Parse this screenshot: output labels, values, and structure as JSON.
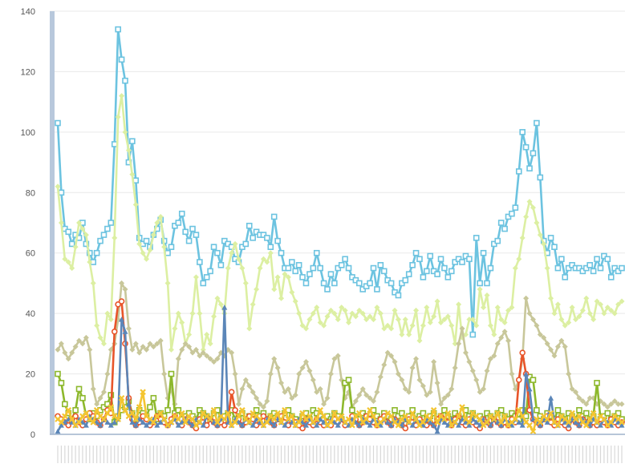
{
  "chart_data": {
    "type": "line",
    "title": "",
    "xlabel": "",
    "ylabel": "",
    "ylim": [
      0,
      140
    ],
    "yticks": [
      0,
      20,
      40,
      60,
      80,
      100,
      120,
      140
    ],
    "x_tick_labels_legible": false,
    "grid": true,
    "legend": "none",
    "marker_note": "each series uses its own marker style (square, diamond, circle, triangle, x)",
    "x": [
      1,
      2,
      3,
      4,
      5,
      6,
      7,
      8,
      9,
      10,
      11,
      12,
      13,
      14,
      15,
      16,
      17,
      18,
      19,
      20,
      21,
      22,
      23,
      24,
      25,
      26,
      27,
      28,
      29,
      30,
      31,
      32,
      33,
      34,
      35,
      36,
      37,
      38,
      39,
      40,
      41,
      42,
      43,
      44,
      45,
      46,
      47,
      48,
      49,
      50,
      51,
      52,
      53,
      54,
      55,
      56,
      57,
      58,
      59,
      60,
      61,
      62,
      63,
      64,
      65,
      66,
      67,
      68,
      69,
      70,
      71,
      72,
      73,
      74,
      75,
      76,
      77,
      78,
      79,
      80,
      81,
      82,
      83,
      84,
      85,
      86,
      87,
      88,
      89,
      90,
      91,
      92,
      93,
      94,
      95,
      96,
      97,
      98,
      99,
      100,
      101,
      102,
      103,
      104,
      105,
      106,
      107,
      108,
      109,
      110,
      111,
      112,
      113,
      114,
      115,
      116,
      117,
      118,
      119,
      120,
      121,
      122,
      123,
      124,
      125,
      126,
      127,
      128,
      129,
      130,
      131,
      132,
      133,
      134,
      135,
      136,
      137,
      138,
      139,
      140,
      141,
      142,
      143,
      144,
      145,
      146,
      147,
      148,
      149,
      150,
      151,
      152,
      153,
      154,
      155,
      156,
      157,
      158,
      159,
      160
    ],
    "series": [
      {
        "color": "#6cc3e0",
        "marker": "square",
        "values": [
          103,
          80,
          68,
          67,
          63,
          66,
          65,
          70,
          63,
          60,
          57,
          60,
          64,
          66,
          68,
          70,
          96,
          134,
          124,
          117,
          90,
          97,
          84,
          65,
          63,
          64,
          62,
          66,
          68,
          71,
          64,
          60,
          62,
          69,
          70,
          73,
          67,
          64,
          68,
          66,
          57,
          50,
          52,
          54,
          62,
          60,
          56,
          64,
          63,
          62,
          58,
          57,
          62,
          63,
          69,
          65,
          67,
          66,
          66,
          65,
          62,
          72,
          64,
          60,
          55,
          55,
          57,
          54,
          56,
          52,
          50,
          53,
          55,
          60,
          55,
          50,
          48,
          53,
          50,
          55,
          56,
          58,
          55,
          52,
          51,
          50,
          48,
          49,
          50,
          55,
          48,
          56,
          54,
          51,
          50,
          47,
          46,
          50,
          51,
          53,
          56,
          60,
          58,
          52,
          54,
          59,
          54,
          53,
          58,
          55,
          52,
          54,
          57,
          58,
          57,
          59,
          58,
          33,
          65,
          50,
          60,
          50,
          55,
          63,
          64,
          70,
          68,
          72,
          73,
          75,
          87,
          100,
          95,
          88,
          93,
          103,
          85,
          64,
          60,
          65,
          62,
          55,
          58,
          52,
          55,
          56,
          55,
          55,
          54,
          55,
          56,
          54,
          58,
          55,
          59,
          58,
          52,
          55,
          54,
          55
        ]
      },
      {
        "color": "#dcefa2",
        "marker": "diamond",
        "values": [
          82,
          70,
          58,
          57,
          55,
          62,
          70,
          68,
          66,
          57,
          50,
          36,
          32,
          30,
          40,
          38,
          65,
          105,
          112,
          100,
          94,
          86,
          76,
          63,
          60,
          58,
          61,
          66,
          70,
          72,
          62,
          50,
          28,
          35,
          40,
          37,
          30,
          33,
          40,
          52,
          40,
          28,
          33,
          30,
          39,
          45,
          43,
          40,
          55,
          60,
          63,
          58,
          55,
          50,
          35,
          43,
          48,
          55,
          58,
          57,
          60,
          48,
          52,
          45,
          53,
          52,
          47,
          44,
          40,
          36,
          35,
          38,
          40,
          42,
          37,
          36,
          39,
          41,
          40,
          38,
          42,
          41,
          37,
          40,
          39,
          41,
          40,
          38,
          39,
          38,
          42,
          40,
          35,
          36,
          35,
          41,
          38,
          33,
          38,
          33,
          36,
          41,
          31,
          36,
          42,
          37,
          39,
          44,
          37,
          38,
          39,
          36,
          30,
          43,
          32,
          33,
          38,
          38,
          36,
          48,
          42,
          46,
          36,
          33,
          42,
          38,
          37,
          41,
          42,
          55,
          58,
          65,
          72,
          77,
          75,
          70,
          66,
          63,
          55,
          45,
          40,
          43,
          38,
          36,
          37,
          42,
          38,
          39,
          41,
          45,
          40,
          38,
          44,
          43,
          40,
          42,
          41,
          40,
          43,
          44
        ]
      },
      {
        "color": "#c8c79a",
        "marker": "diamond",
        "values": [
          28,
          30,
          27,
          25,
          27,
          29,
          31,
          30,
          32,
          28,
          15,
          10,
          12,
          14,
          20,
          28,
          30,
          38,
          50,
          48,
          35,
          28,
          30,
          27,
          29,
          28,
          30,
          29,
          30,
          31,
          20,
          12,
          15,
          10,
          25,
          28,
          30,
          29,
          27,
          28,
          26,
          27,
          26,
          25,
          24,
          25,
          27,
          26,
          28,
          27,
          20,
          10,
          15,
          18,
          16,
          14,
          12,
          10,
          9,
          11,
          20,
          25,
          22,
          17,
          14,
          15,
          12,
          13,
          20,
          22,
          24,
          21,
          18,
          14,
          15,
          10,
          12,
          20,
          25,
          26,
          18,
          12,
          14,
          9,
          11,
          13,
          15,
          13,
          12,
          11,
          14,
          19,
          23,
          27,
          26,
          24,
          20,
          18,
          15,
          14,
          22,
          25,
          18,
          16,
          13,
          14,
          24,
          17,
          10,
          12,
          13,
          15,
          22,
          30,
          35,
          27,
          24,
          21,
          18,
          14,
          15,
          21,
          25,
          26,
          30,
          32,
          34,
          31,
          20,
          15,
          18,
          25,
          45,
          40,
          38,
          36,
          33,
          32,
          30,
          28,
          26,
          29,
          31,
          29,
          20,
          15,
          14,
          12,
          11,
          10,
          12,
          12,
          10,
          11,
          10,
          9,
          10,
          11,
          10,
          10
        ]
      },
      {
        "color": "#8db82c",
        "marker": "square",
        "values": [
          20,
          17,
          10,
          7,
          5,
          8,
          15,
          12,
          6,
          5,
          7,
          6,
          8,
          9,
          10,
          13,
          4,
          6,
          8,
          9,
          11,
          7,
          5,
          8,
          7,
          6,
          9,
          12,
          5,
          7,
          6,
          8,
          20,
          7,
          8,
          5,
          6,
          7,
          6,
          5,
          8,
          7,
          6,
          5,
          7,
          8,
          5,
          6,
          7,
          8,
          5,
          6,
          7,
          5,
          6,
          4,
          8,
          6,
          7,
          5,
          6,
          7,
          6,
          5,
          7,
          8,
          6,
          5,
          4,
          6,
          7,
          5,
          8,
          7,
          6,
          5,
          6,
          5,
          7,
          6,
          5,
          17,
          18,
          8,
          6,
          5,
          7,
          6,
          5,
          8,
          6,
          5,
          7,
          6,
          5,
          8,
          6,
          7,
          5,
          6,
          8,
          5,
          6,
          7,
          5,
          6,
          7,
          5,
          6,
          8,
          6,
          5,
          7,
          6,
          5,
          8,
          6,
          7,
          5,
          6,
          5,
          7,
          6,
          5,
          7,
          8,
          6,
          5,
          7,
          6,
          5,
          8,
          6,
          19,
          18,
          8,
          6,
          5,
          7,
          6,
          5,
          8,
          6,
          5,
          7,
          6,
          5,
          8,
          6,
          7,
          5,
          6,
          17,
          5,
          6,
          7,
          5,
          6,
          7,
          5
        ]
      },
      {
        "color": "#e8552a",
        "marker": "circle",
        "values": [
          6,
          5,
          4,
          3,
          5,
          6,
          4,
          3,
          5,
          7,
          6,
          4,
          3,
          5,
          8,
          7,
          34,
          43,
          44,
          30,
          12,
          5,
          3,
          4,
          6,
          5,
          3,
          4,
          6,
          5,
          4,
          3,
          5,
          6,
          4,
          3,
          5,
          4,
          3,
          2,
          5,
          4,
          3,
          5,
          4,
          3,
          4,
          3,
          5,
          14,
          8,
          5,
          3,
          4,
          6,
          5,
          3,
          4,
          6,
          5,
          4,
          3,
          5,
          6,
          4,
          3,
          5,
          4,
          3,
          2,
          5,
          4,
          3,
          5,
          4,
          3,
          4,
          3,
          5,
          4,
          5,
          3,
          4,
          6,
          5,
          3,
          4,
          6,
          5,
          4,
          3,
          5,
          6,
          4,
          3,
          5,
          4,
          3,
          2,
          5,
          4,
          3,
          5,
          4,
          3,
          4,
          3,
          5,
          6,
          5,
          4,
          3,
          5,
          6,
          4,
          3,
          5,
          4,
          3,
          2,
          5,
          4,
          3,
          5,
          4,
          3,
          4,
          3,
          5,
          4,
          18,
          27,
          20,
          8,
          5,
          4,
          3,
          5,
          6,
          4,
          3,
          5,
          4,
          3,
          2,
          5,
          4,
          3,
          5,
          4,
          3,
          4,
          3,
          5,
          4,
          3,
          5,
          4,
          3,
          4
        ]
      },
      {
        "color": "#5b86b8",
        "marker": "triangle",
        "values": [
          1,
          3,
          4,
          5,
          4,
          3,
          5,
          4,
          3,
          6,
          5,
          4,
          3,
          5,
          4,
          3,
          4,
          5,
          38,
          34,
          10,
          4,
          3,
          5,
          4,
          3,
          4,
          5,
          3,
          4,
          5,
          3,
          4,
          5,
          3,
          4,
          5,
          4,
          3,
          5,
          4,
          3,
          6,
          5,
          4,
          3,
          5,
          42,
          4,
          3,
          5,
          4,
          3,
          5,
          4,
          3,
          5,
          4,
          3,
          5,
          4,
          3,
          5,
          4,
          3,
          5,
          4,
          3,
          5,
          4,
          3,
          5,
          4,
          3,
          5,
          4,
          3,
          5,
          4,
          3,
          5,
          4,
          3,
          5,
          4,
          3,
          5,
          4,
          3,
          5,
          4,
          3,
          5,
          4,
          3,
          5,
          4,
          3,
          5,
          4,
          3,
          5,
          4,
          3,
          5,
          4,
          3,
          1,
          5,
          4,
          3,
          5,
          4,
          3,
          5,
          4,
          3,
          5,
          4,
          3,
          5,
          4,
          3,
          5,
          4,
          3,
          5,
          4,
          3,
          5,
          4,
          3,
          20,
          15,
          5,
          4,
          3,
          5,
          4,
          12,
          4,
          3,
          5,
          4,
          3,
          5,
          4,
          3,
          5,
          4,
          3,
          5,
          4,
          3,
          5,
          4,
          3,
          5,
          4,
          3
        ]
      },
      {
        "color": "#f4c531",
        "marker": "x",
        "values": [
          5,
          4,
          6,
          8,
          5,
          3,
          4,
          6,
          7,
          5,
          4,
          8,
          6,
          5,
          7,
          9,
          6,
          5,
          12,
          8,
          6,
          7,
          5,
          9,
          14,
          6,
          5,
          4,
          6,
          7,
          5,
          3,
          4,
          6,
          5,
          7,
          4,
          6,
          5,
          3,
          4,
          7,
          6,
          5,
          8,
          4,
          6,
          5,
          7,
          3,
          4,
          6,
          8,
          5,
          4,
          7,
          6,
          5,
          3,
          4,
          6,
          5,
          7,
          4,
          8,
          5,
          6,
          3,
          4,
          7,
          5,
          6,
          4,
          5,
          8,
          6,
          3,
          4,
          7,
          5,
          6,
          4,
          5,
          3,
          6,
          7,
          4,
          5,
          8,
          6,
          3,
          4,
          5,
          7,
          6,
          4,
          3,
          5,
          6,
          4,
          7,
          5,
          3,
          4,
          6,
          5,
          8,
          4,
          6,
          5,
          7,
          3,
          4,
          6,
          9,
          5,
          4,
          7,
          6,
          5,
          3,
          4,
          6,
          5,
          7,
          4,
          6,
          3,
          4,
          5,
          8,
          6,
          4,
          3,
          1,
          5,
          4,
          6,
          5,
          7,
          4,
          3,
          6,
          5,
          4,
          7,
          5,
          6,
          4,
          3,
          5,
          7,
          4,
          6,
          5,
          3,
          4,
          6,
          5,
          4
        ]
      }
    ]
  }
}
